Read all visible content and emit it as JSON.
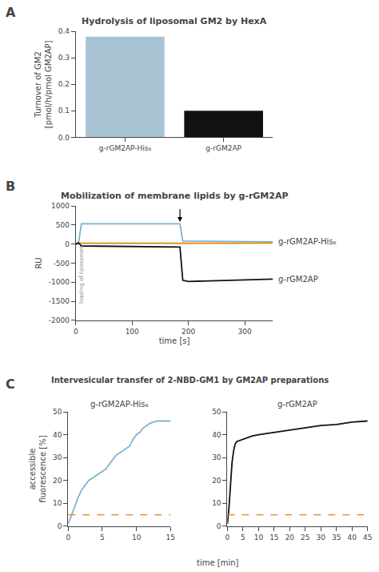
{
  "chart_data": [
    {
      "type": "bar",
      "label": "A",
      "title": "Hydrolysis of liposomal GM2 by HexA",
      "categories": [
        "g-rGM2AP-His₆",
        "g-rGM2AP"
      ],
      "values": [
        0.38,
        0.1
      ],
      "colors": [
        "#a8c4d4",
        "#111111"
      ],
      "ylabel": "Turnover of GM2\n[pmol/h/pmol GM2AP]",
      "ylim": [
        0,
        0.4
      ],
      "yticks": [
        {
          "value": 0.0,
          "label": "0.0"
        },
        0.1,
        0.2,
        0.3,
        0.4
      ],
      "grid": false
    },
    {
      "type": "line",
      "label": "B",
      "title": "Mobilization of membrane lipids by g-rGM2AP",
      "xlabel": "time [s]",
      "ylabel": "RU",
      "xlim": [
        0,
        350
      ],
      "ylim": [
        -2000,
        1000
      ],
      "xticks": [
        0,
        100,
        200,
        300
      ],
      "yticks": [
        -2000,
        -1500,
        -1000,
        -500,
        0,
        500,
        1000
      ],
      "grid": false,
      "series": [
        {
          "name": "g-rGM2AP-His₆",
          "color": "#7fb3cc",
          "x": [
            0,
            5,
            10,
            185,
            190,
            350
          ],
          "values": [
            0,
            50,
            530,
            530,
            80,
            60
          ]
        },
        {
          "color": "#e8820a",
          "x": [
            0,
            5,
            350
          ],
          "values": [
            0,
            20,
            25
          ]
        },
        {
          "name": "g-rGM2AP",
          "color": "#111111",
          "x": [
            0,
            5,
            10,
            185,
            190,
            200,
            350
          ],
          "values": [
            0,
            30,
            -50,
            -80,
            -950,
            -980,
            -920
          ]
        }
      ],
      "arrow": {
        "x": 185,
        "y_start": 950,
        "y_end": 580
      },
      "annotations": [
        {
          "text": "loading of liposomes",
          "color": "#888888"
        }
      ]
    },
    {
      "type": "line",
      "label": "C",
      "title": "Intervesicular transfer of 2-NBD-GM1 by GM2AP preparations",
      "subtitle": "g-rGM2AP-His₆",
      "xlabel": "time [min]",
      "ylabel": "accessible\nfluorescence [%]",
      "xlim": [
        0,
        15
      ],
      "ylim": [
        0,
        50
      ],
      "xticks": [
        0,
        5,
        10,
        15
      ],
      "yticks": [
        0,
        10,
        20,
        30,
        40,
        50
      ],
      "grid": false,
      "series": [
        {
          "color": "#7fb3cc",
          "x": [
            0,
            0.5,
            1,
            1.5,
            2,
            2.5,
            3,
            3.5,
            4,
            4.5,
            5,
            5.5,
            6,
            6.5,
            7,
            7.5,
            8,
            8.5,
            9,
            9.5,
            10,
            10.5,
            11,
            11.5,
            12,
            12.5,
            13,
            13.5,
            14,
            14.5,
            15
          ],
          "values": [
            1,
            5,
            9,
            13,
            16,
            18,
            20,
            21,
            22,
            23,
            24,
            25,
            27,
            29,
            31,
            32,
            33,
            34,
            35,
            38,
            40,
            41,
            43,
            44,
            45,
            45.5,
            46,
            46,
            46,
            46,
            46
          ]
        },
        {
          "color": "#e8820a",
          "line_style": "dashed",
          "y": 5
        }
      ]
    },
    {
      "type": "line",
      "subtitle": "g-rGM2AP",
      "xlim": [
        0,
        45
      ],
      "ylim": [
        0,
        50
      ],
      "xticks": [
        0,
        5,
        10,
        15,
        20,
        25,
        30,
        35,
        40,
        45
      ],
      "yticks": [
        0,
        10,
        20,
        30,
        40,
        50
      ],
      "grid": false,
      "series": [
        {
          "color": "#111111",
          "x": [
            0,
            0.5,
            1,
            1.5,
            2,
            2.5,
            3,
            4,
            5,
            6,
            7,
            8,
            10,
            15,
            20,
            25,
            30,
            35,
            40,
            45
          ],
          "values": [
            1,
            8,
            18,
            28,
            33,
            36,
            37,
            37.5,
            38,
            38.5,
            39,
            39.5,
            40,
            41,
            42,
            43,
            44,
            44.5,
            45.5,
            46
          ]
        },
        {
          "color": "#e8820a",
          "line_style": "dashed",
          "y": 5
        }
      ]
    }
  ]
}
